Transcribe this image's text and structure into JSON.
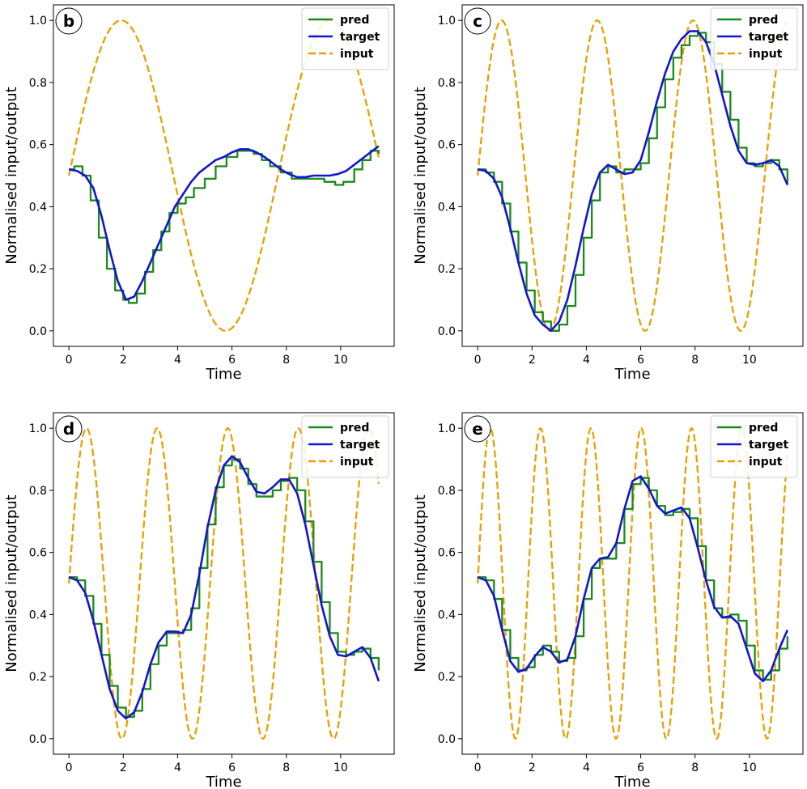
{
  "chart_data": [
    {
      "type": "line",
      "panel_label": "b",
      "xlabel": "Time",
      "ylabel": "Normalised input/output",
      "xlim": [
        -0.57,
        11.97
      ],
      "ylim": [
        -0.05,
        1.05
      ],
      "xticks": [
        0,
        2,
        4,
        6,
        8,
        10
      ],
      "yticks": [
        0.0,
        0.2,
        0.4,
        0.6,
        0.8,
        1.0
      ],
      "legend_position": "top-right",
      "series": [
        {
          "name": "pred",
          "color": "#1a8a1a",
          "style": "step",
          "x": [
            0,
            0.2,
            0.5,
            0.8,
            1.1,
            1.4,
            1.7,
            2.0,
            2.2,
            2.5,
            2.8,
            3.1,
            3.4,
            3.7,
            4.0,
            4.3,
            4.6,
            5.0,
            5.4,
            5.8,
            6.2,
            6.5,
            6.8,
            7.1,
            7.4,
            7.8,
            8.2,
            8.6,
            9.0,
            9.4,
            9.8,
            10.1,
            10.5,
            10.8,
            11.1,
            11.4
          ],
          "y": [
            0.52,
            0.53,
            0.5,
            0.42,
            0.3,
            0.2,
            0.13,
            0.1,
            0.09,
            0.12,
            0.19,
            0.26,
            0.32,
            0.38,
            0.41,
            0.43,
            0.46,
            0.49,
            0.53,
            0.56,
            0.58,
            0.58,
            0.57,
            0.55,
            0.53,
            0.51,
            0.49,
            0.49,
            0.49,
            0.48,
            0.47,
            0.48,
            0.52,
            0.55,
            0.58,
            0.57
          ]
        },
        {
          "name": "target",
          "color": "#1414d2",
          "style": "solid",
          "x": [
            0,
            0.3,
            0.6,
            0.9,
            1.2,
            1.5,
            1.8,
            2.1,
            2.4,
            2.7,
            3.0,
            3.3,
            3.6,
            3.9,
            4.2,
            4.5,
            4.8,
            5.1,
            5.4,
            5.7,
            6.0,
            6.3,
            6.6,
            6.9,
            7.2,
            7.5,
            7.8,
            8.1,
            8.4,
            8.7,
            9.0,
            9.3,
            9.6,
            9.9,
            10.2,
            10.5,
            10.8,
            11.1,
            11.4
          ],
          "y": [
            0.52,
            0.515,
            0.5,
            0.46,
            0.37,
            0.26,
            0.16,
            0.1,
            0.11,
            0.16,
            0.22,
            0.28,
            0.34,
            0.4,
            0.44,
            0.48,
            0.51,
            0.53,
            0.55,
            0.56,
            0.575,
            0.585,
            0.585,
            0.575,
            0.56,
            0.54,
            0.52,
            0.505,
            0.495,
            0.495,
            0.5,
            0.5,
            0.5,
            0.505,
            0.515,
            0.535,
            0.555,
            0.575,
            0.595
          ]
        },
        {
          "name": "input",
          "color": "#e8a000",
          "style": "dashed",
          "function": {
            "kind": "sin",
            "amplitude": 0.5,
            "offset": 0.5,
            "frequency_cycles_per_unit": 0.13,
            "x_start": 0,
            "x_end": 11.4
          }
        }
      ]
    },
    {
      "type": "line",
      "panel_label": "c",
      "xlabel": "Time",
      "ylabel": "Normalised input/output",
      "xlim": [
        -0.57,
        11.97
      ],
      "ylim": [
        -0.05,
        1.05
      ],
      "xticks": [
        0,
        2,
        4,
        6,
        8,
        10
      ],
      "yticks": [
        0.0,
        0.2,
        0.4,
        0.6,
        0.8,
        1.0
      ],
      "legend_position": "top-right",
      "series": [
        {
          "name": "pred",
          "color": "#1a8a1a",
          "style": "step",
          "x": [
            0,
            0.3,
            0.6,
            0.9,
            1.2,
            1.5,
            1.8,
            2.1,
            2.4,
            2.7,
            3.0,
            3.3,
            3.6,
            3.9,
            4.2,
            4.5,
            4.8,
            5.1,
            5.4,
            5.7,
            6.0,
            6.3,
            6.6,
            6.9,
            7.2,
            7.5,
            7.8,
            8.1,
            8.4,
            8.7,
            9.0,
            9.3,
            9.6,
            9.9,
            10.2,
            10.5,
            10.8,
            11.1,
            11.4
          ],
          "y": [
            0.52,
            0.51,
            0.48,
            0.41,
            0.32,
            0.22,
            0.13,
            0.06,
            0.03,
            0.0,
            0.02,
            0.08,
            0.18,
            0.3,
            0.42,
            0.51,
            0.53,
            0.51,
            0.52,
            0.52,
            0.54,
            0.62,
            0.72,
            0.81,
            0.88,
            0.92,
            0.95,
            0.96,
            0.93,
            0.86,
            0.77,
            0.68,
            0.59,
            0.54,
            0.53,
            0.54,
            0.55,
            0.52,
            0.47
          ]
        },
        {
          "name": "target",
          "color": "#1414d2",
          "style": "solid",
          "x": [
            0,
            0.3,
            0.6,
            0.9,
            1.2,
            1.5,
            1.8,
            2.1,
            2.4,
            2.7,
            3.0,
            3.3,
            3.6,
            3.9,
            4.2,
            4.5,
            4.8,
            5.1,
            5.4,
            5.7,
            6.0,
            6.3,
            6.6,
            6.9,
            7.2,
            7.5,
            7.8,
            8.1,
            8.4,
            8.7,
            9.0,
            9.3,
            9.6,
            9.9,
            10.2,
            10.5,
            10.8,
            11.1,
            11.4
          ],
          "y": [
            0.52,
            0.515,
            0.49,
            0.43,
            0.33,
            0.22,
            0.12,
            0.05,
            0.02,
            0.0,
            0.03,
            0.1,
            0.21,
            0.33,
            0.44,
            0.51,
            0.535,
            0.52,
            0.505,
            0.51,
            0.55,
            0.64,
            0.74,
            0.83,
            0.9,
            0.94,
            0.965,
            0.965,
            0.93,
            0.86,
            0.76,
            0.66,
            0.58,
            0.54,
            0.535,
            0.54,
            0.55,
            0.53,
            0.47
          ]
        },
        {
          "name": "input",
          "color": "#e8a000",
          "style": "dashed",
          "function": {
            "kind": "sin",
            "amplitude": 0.5,
            "offset": 0.5,
            "frequency_cycles_per_unit": 0.284,
            "x_start": 0,
            "x_end": 11.4
          }
        }
      ]
    },
    {
      "type": "line",
      "panel_label": "d",
      "xlabel": "Time",
      "ylabel": "Normalised input/output",
      "xlim": [
        -0.57,
        11.97
      ],
      "ylim": [
        -0.05,
        1.05
      ],
      "xticks": [
        0,
        2,
        4,
        6,
        8,
        10
      ],
      "yticks": [
        0.0,
        0.2,
        0.4,
        0.6,
        0.8,
        1.0
      ],
      "legend_position": "top-right",
      "series": [
        {
          "name": "pred",
          "color": "#1a8a1a",
          "style": "step",
          "x": [
            0,
            0.3,
            0.6,
            0.9,
            1.2,
            1.5,
            1.8,
            2.1,
            2.4,
            2.7,
            3.0,
            3.3,
            3.6,
            3.9,
            4.2,
            4.5,
            4.8,
            5.1,
            5.4,
            5.7,
            6.0,
            6.3,
            6.6,
            6.9,
            7.2,
            7.5,
            7.8,
            8.1,
            8.4,
            8.7,
            9.0,
            9.3,
            9.6,
            9.9,
            10.2,
            10.5,
            10.8,
            11.1,
            11.4
          ],
          "y": [
            0.52,
            0.51,
            0.46,
            0.37,
            0.27,
            0.17,
            0.1,
            0.07,
            0.09,
            0.16,
            0.24,
            0.3,
            0.34,
            0.34,
            0.35,
            0.42,
            0.55,
            0.69,
            0.81,
            0.88,
            0.9,
            0.87,
            0.82,
            0.78,
            0.78,
            0.8,
            0.83,
            0.84,
            0.8,
            0.7,
            0.57,
            0.44,
            0.34,
            0.28,
            0.27,
            0.28,
            0.29,
            0.26,
            0.22
          ]
        },
        {
          "name": "target",
          "color": "#1414d2",
          "style": "solid",
          "x": [
            0,
            0.3,
            0.6,
            0.9,
            1.2,
            1.5,
            1.8,
            2.1,
            2.4,
            2.7,
            3.0,
            3.3,
            3.6,
            3.9,
            4.2,
            4.5,
            4.8,
            5.1,
            5.4,
            5.7,
            6.0,
            6.3,
            6.6,
            6.9,
            7.2,
            7.5,
            7.8,
            8.1,
            8.4,
            8.7,
            9.0,
            9.3,
            9.6,
            9.9,
            10.2,
            10.5,
            10.8,
            11.1,
            11.4
          ],
          "y": [
            0.52,
            0.51,
            0.47,
            0.38,
            0.27,
            0.16,
            0.09,
            0.065,
            0.085,
            0.15,
            0.24,
            0.31,
            0.345,
            0.345,
            0.34,
            0.4,
            0.53,
            0.68,
            0.8,
            0.88,
            0.91,
            0.89,
            0.84,
            0.795,
            0.79,
            0.81,
            0.835,
            0.835,
            0.79,
            0.69,
            0.56,
            0.43,
            0.33,
            0.27,
            0.265,
            0.28,
            0.295,
            0.26,
            0.185
          ]
        },
        {
          "name": "input",
          "color": "#e8a000",
          "style": "dashed",
          "function": {
            "kind": "sin",
            "amplitude": 0.5,
            "offset": 0.5,
            "frequency_cycles_per_unit": 0.385,
            "x_start": 0,
            "x_end": 11.4
          }
        }
      ]
    },
    {
      "type": "line",
      "panel_label": "e",
      "xlabel": "Time",
      "ylabel": "Normalised input/output",
      "xlim": [
        -0.57,
        11.97
      ],
      "ylim": [
        -0.05,
        1.05
      ],
      "xticks": [
        0,
        2,
        4,
        6,
        8,
        10
      ],
      "yticks": [
        0.0,
        0.2,
        0.4,
        0.6,
        0.8,
        1.0
      ],
      "legend_position": "top-right",
      "series": [
        {
          "name": "pred",
          "color": "#1a8a1a",
          "style": "step",
          "x": [
            0,
            0.3,
            0.6,
            0.9,
            1.2,
            1.5,
            1.8,
            2.1,
            2.4,
            2.7,
            3.0,
            3.3,
            3.6,
            3.9,
            4.2,
            4.5,
            4.8,
            5.1,
            5.4,
            5.7,
            6.0,
            6.3,
            6.6,
            6.9,
            7.2,
            7.5,
            7.8,
            8.1,
            8.4,
            8.7,
            9.0,
            9.3,
            9.6,
            9.9,
            10.2,
            10.5,
            10.8,
            11.1,
            11.4
          ],
          "y": [
            0.52,
            0.51,
            0.45,
            0.35,
            0.26,
            0.22,
            0.23,
            0.27,
            0.3,
            0.28,
            0.25,
            0.26,
            0.33,
            0.45,
            0.55,
            0.58,
            0.58,
            0.63,
            0.74,
            0.82,
            0.84,
            0.8,
            0.75,
            0.72,
            0.73,
            0.74,
            0.71,
            0.62,
            0.51,
            0.42,
            0.39,
            0.4,
            0.38,
            0.3,
            0.22,
            0.19,
            0.22,
            0.29,
            0.33
          ]
        },
        {
          "name": "target",
          "color": "#1414d2",
          "style": "solid",
          "x": [
            0,
            0.3,
            0.6,
            0.9,
            1.2,
            1.5,
            1.8,
            2.1,
            2.4,
            2.7,
            3.0,
            3.3,
            3.6,
            3.9,
            4.2,
            4.5,
            4.8,
            5.1,
            5.4,
            5.7,
            6.0,
            6.3,
            6.6,
            6.9,
            7.2,
            7.5,
            7.8,
            8.1,
            8.4,
            8.7,
            9.0,
            9.3,
            9.6,
            9.9,
            10.2,
            10.5,
            10.8,
            11.1,
            11.4
          ],
          "y": [
            0.52,
            0.51,
            0.46,
            0.35,
            0.25,
            0.215,
            0.225,
            0.265,
            0.295,
            0.28,
            0.245,
            0.255,
            0.33,
            0.45,
            0.55,
            0.58,
            0.585,
            0.63,
            0.74,
            0.83,
            0.845,
            0.805,
            0.75,
            0.725,
            0.735,
            0.745,
            0.71,
            0.615,
            0.51,
            0.425,
            0.39,
            0.395,
            0.37,
            0.29,
            0.21,
            0.185,
            0.22,
            0.29,
            0.35
          ]
        },
        {
          "name": "input",
          "color": "#e8a000",
          "style": "dashed",
          "function": {
            "kind": "sin",
            "amplitude": 0.5,
            "offset": 0.5,
            "frequency_cycles_per_unit": 0.54,
            "x_start": 0,
            "x_end": 11.4
          }
        }
      ]
    }
  ]
}
